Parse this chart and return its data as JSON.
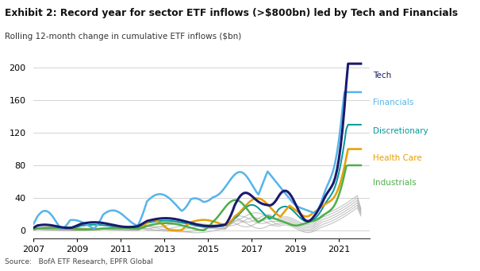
{
  "title": "Exhibit 2: Record year for sector ETF inflows (>$800bn) led by Tech and Financials",
  "subtitle": "Rolling 12-month change in cumulative ETF inflows ($bn)",
  "source": "Source:   BofA ETF Research, EPFR Global",
  "ylim": [
    -10,
    210
  ],
  "yticks": [
    0,
    40,
    80,
    120,
    160,
    200
  ],
  "xlim": [
    2007,
    2022.4
  ],
  "xticks": [
    2007,
    2009,
    2011,
    2013,
    2015,
    2017,
    2019,
    2021
  ],
  "background_color": "#ffffff",
  "legend_items": [
    {
      "label": "Tech",
      "color": "#1a1a6e",
      "lw": 2.2,
      "zorder": 10,
      "ann_y": 0.91
    },
    {
      "label": "Financials",
      "color": "#56b4e9",
      "lw": 1.8,
      "zorder": 9,
      "ann_y": 0.76
    },
    {
      "label": "Discretionary",
      "color": "#009999",
      "lw": 1.4,
      "zorder": 8,
      "ann_y": 0.6
    },
    {
      "label": "Health Care",
      "color": "#e69f00",
      "lw": 1.8,
      "zorder": 9,
      "ann_y": 0.45
    },
    {
      "label": "Industrials",
      "color": "#4daf4a",
      "lw": 1.8,
      "zorder": 9,
      "ann_y": 0.31
    }
  ],
  "gray_color": "#aaaaaa",
  "gray_lw": 0.8,
  "grid_color": "#cccccc",
  "grid_lw": 0.6
}
